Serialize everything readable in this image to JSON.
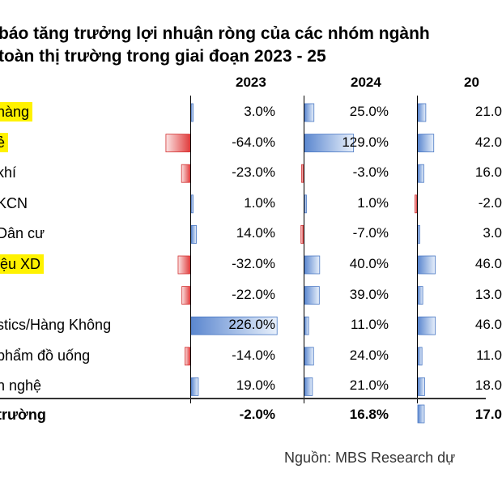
{
  "title_line1": "báo tăng trưởng lợi nhuận ròng của các nhóm ngành",
  "title_line2": "toàn thị trường trong giai đoạn 2023 - 25",
  "source": "Nguồn: MBS Research dự",
  "colors": {
    "positive": "#6f97d6",
    "negative": "#e45a5a"
  },
  "chart_data": {
    "type": "table",
    "columns": [
      "2023",
      "2024",
      "20"
    ],
    "rows": [
      {
        "label": "hàng",
        "highlight": true,
        "values": [
          3.0,
          25.0,
          21.0
        ],
        "texts": [
          "3.0%",
          "25.0%",
          "21.0"
        ]
      },
      {
        "label": "ẻ",
        "highlight": true,
        "values": [
          -64.0,
          129.0,
          42.0
        ],
        "texts": [
          "-64.0%",
          "129.0%",
          "42.0"
        ]
      },
      {
        "label": "khí",
        "highlight": false,
        "values": [
          -23.0,
          -3.0,
          16.0
        ],
        "texts": [
          "-23.0%",
          "-3.0%",
          "16.0"
        ]
      },
      {
        "label": "KCN",
        "highlight": false,
        "values": [
          1.0,
          1.0,
          -2.0
        ],
        "texts": [
          "1.0%",
          "1.0%",
          "-2.0"
        ]
      },
      {
        "label": "Dân cư",
        "highlight": false,
        "values": [
          14.0,
          -7.0,
          3.0
        ],
        "texts": [
          "14.0%",
          "-7.0%",
          "3.0"
        ]
      },
      {
        "label": "iệu XD",
        "highlight": true,
        "values": [
          -32.0,
          40.0,
          46.0
        ],
        "texts": [
          "-32.0%",
          "40.0%",
          "46.0"
        ]
      },
      {
        "label": "",
        "highlight": false,
        "values": [
          -22.0,
          39.0,
          13.0
        ],
        "texts": [
          "-22.0%",
          "39.0%",
          "13.0"
        ]
      },
      {
        "label": "stics/Hàng Không",
        "highlight": false,
        "values": [
          226.0,
          11.0,
          46.0
        ],
        "texts": [
          "226.0%",
          "11.0%",
          "46.0"
        ]
      },
      {
        "label": "phẩm đồ uống",
        "highlight": false,
        "values": [
          -14.0,
          24.0,
          11.0
        ],
        "texts": [
          "-14.0%",
          "24.0%",
          "11.0"
        ]
      },
      {
        "label": "n nghệ",
        "highlight": false,
        "values": [
          19.0,
          21.0,
          18.0
        ],
        "texts": [
          "19.0%",
          "21.0%",
          "18.0"
        ]
      }
    ],
    "total": {
      "label": "trường",
      "values": [
        -2.0,
        16.8,
        17.0
      ],
      "texts": [
        "-2.0%",
        "16.8%",
        "17.0"
      ]
    }
  }
}
